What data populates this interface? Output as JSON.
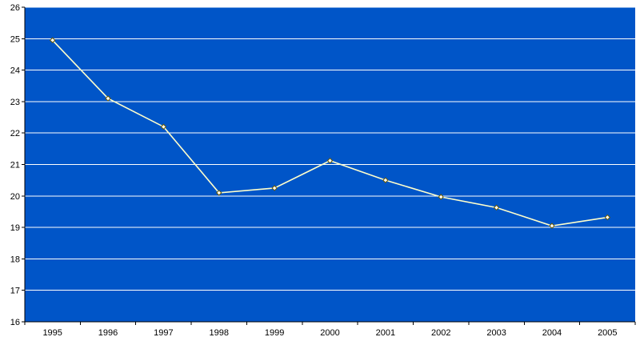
{
  "chart_data": {
    "type": "line",
    "title": "",
    "xlabel": "",
    "ylabel": "",
    "x": [
      "1995",
      "1996",
      "1997",
      "1998",
      "1999",
      "2000",
      "2001",
      "2002",
      "2003",
      "2004",
      "2005"
    ],
    "series": [
      {
        "values": [
          24.95,
          23.1,
          22.2,
          20.1,
          20.25,
          21.12,
          20.5,
          19.97,
          19.63,
          19.05,
          19.32
        ]
      }
    ],
    "ylim": [
      16,
      26
    ],
    "yticks": [
      "16",
      "17",
      "18",
      "19",
      "20",
      "21",
      "22",
      "23",
      "24",
      "25",
      "26"
    ],
    "grid": true,
    "legend": "none",
    "colors": {
      "plot_background": "#0055C8",
      "gridline": "#FFFFFF",
      "line": "#FFFFCC",
      "marker_fill": "#FFFFFF",
      "marker_stroke": "#6B5A00",
      "axis": "#000000"
    }
  }
}
